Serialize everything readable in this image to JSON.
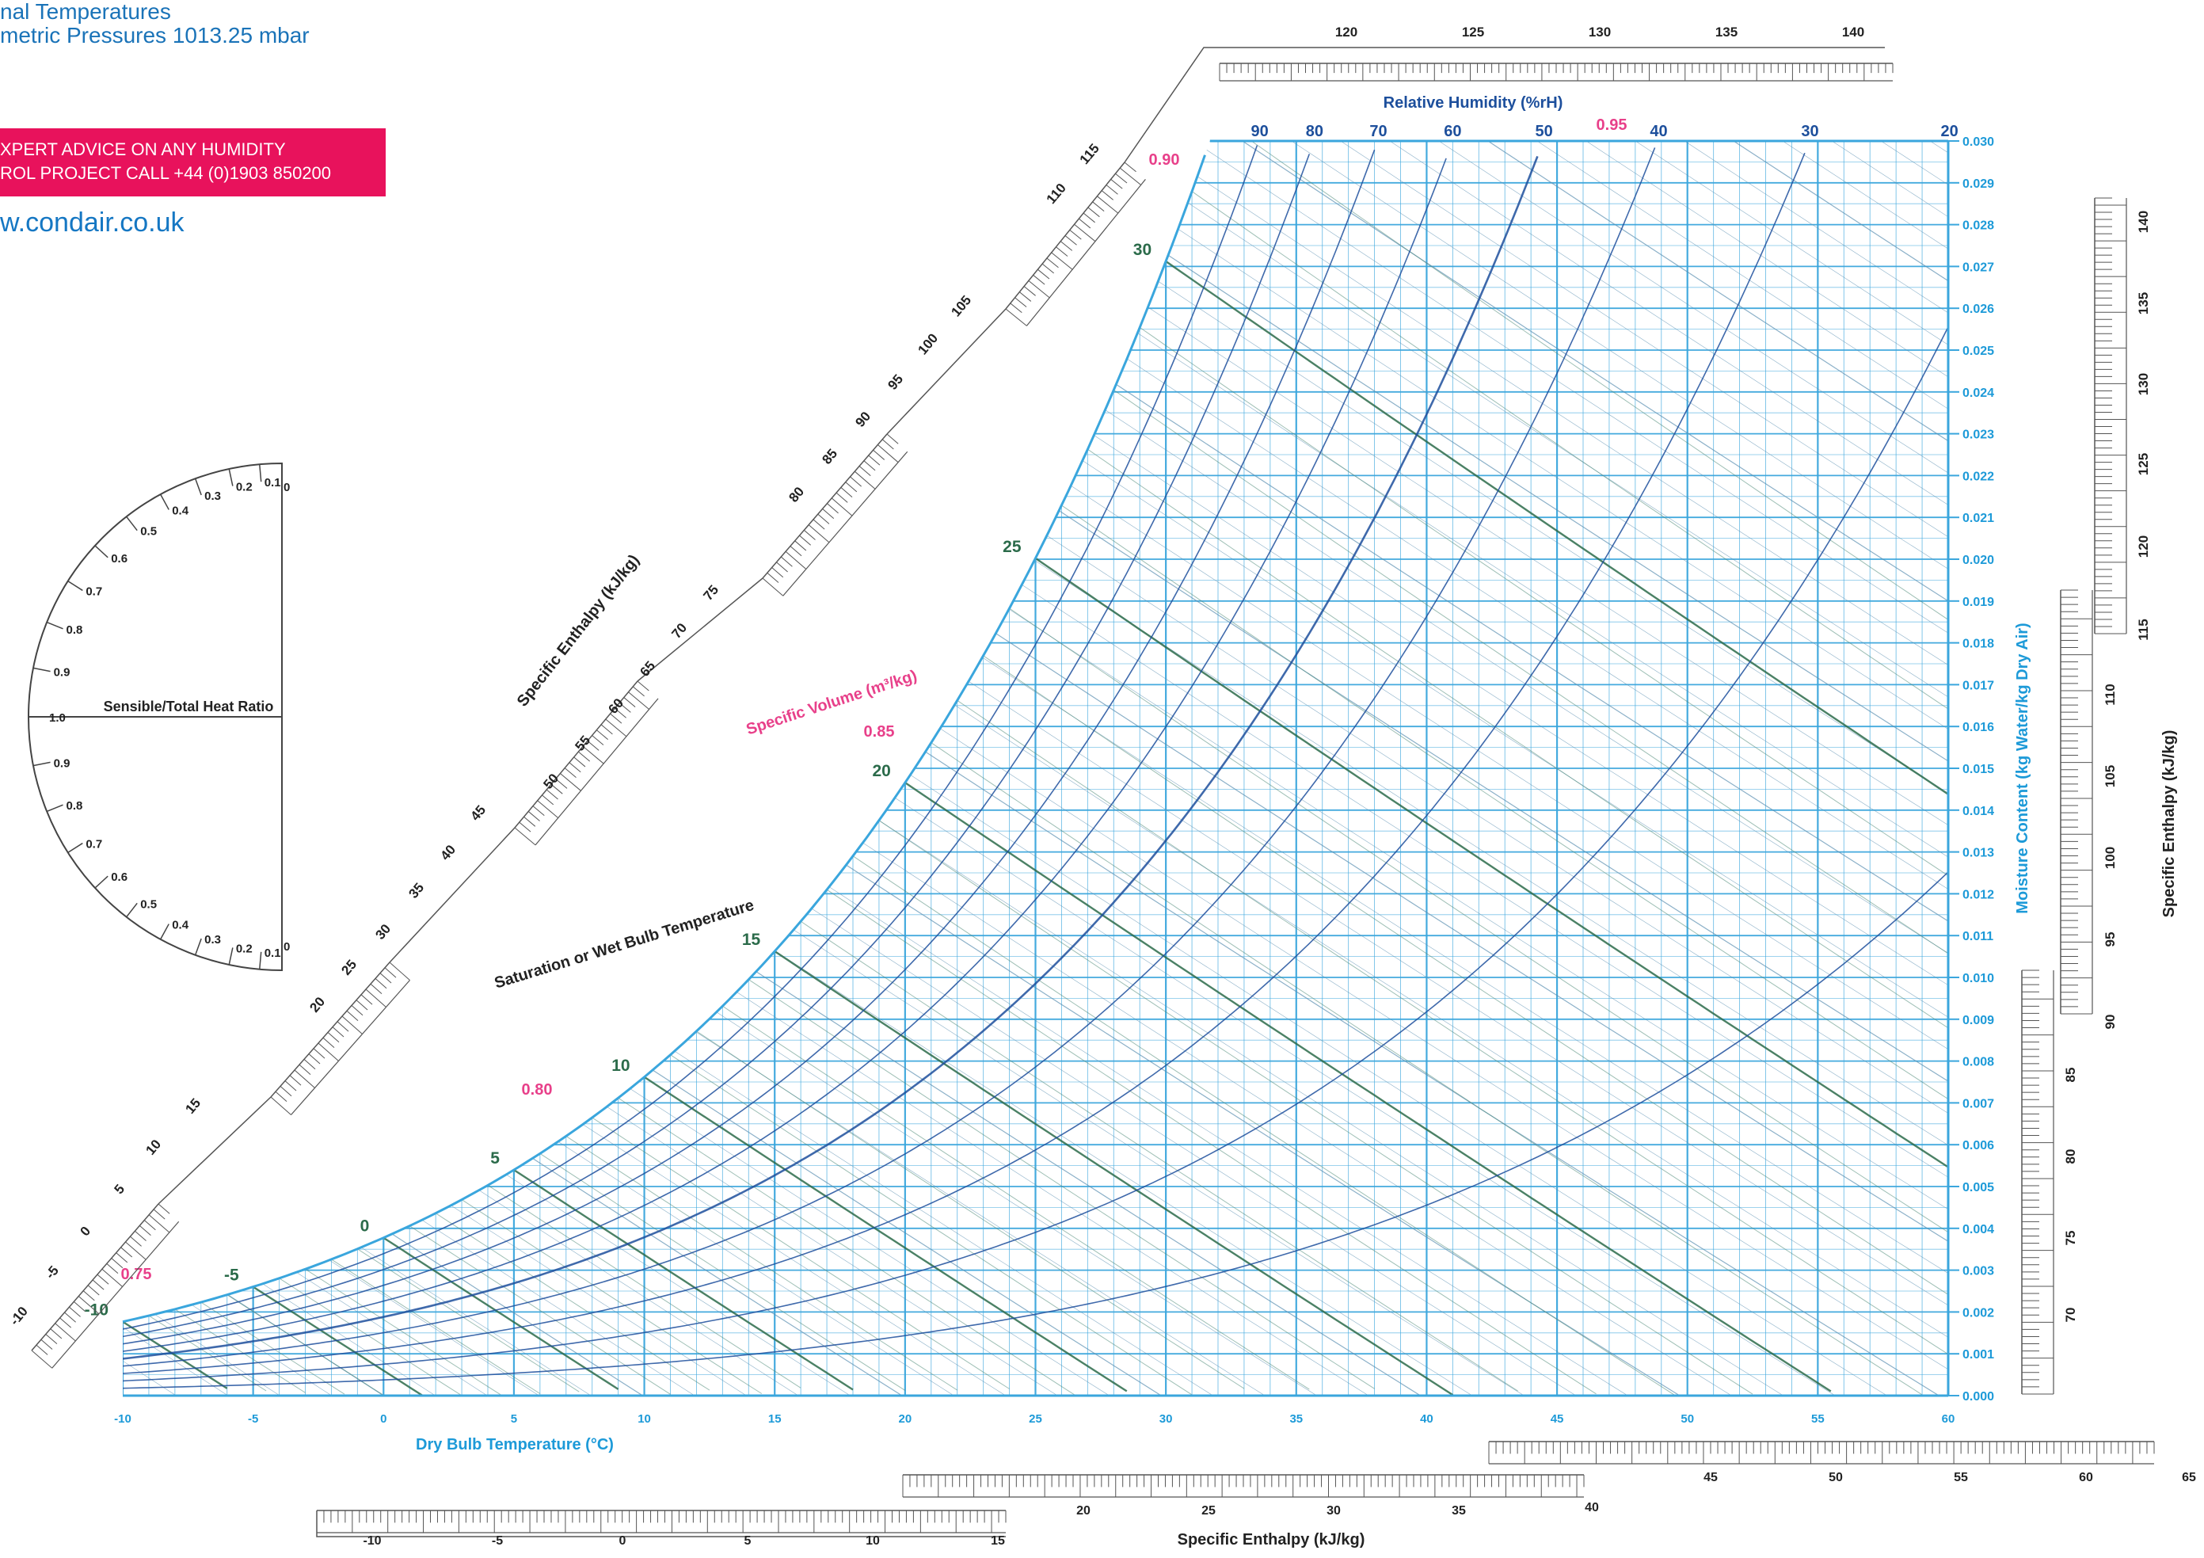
{
  "header": {
    "line1": "nal Temperatures",
    "line2": "metric Pressures 1013.25 mbar"
  },
  "banner": {
    "line1": "XPERT ADVICE ON ANY HUMIDITY",
    "line2": "ROL PROJECT CALL +44 (0)1903 850200"
  },
  "website": "w.condair.co.uk",
  "colors": {
    "grid": "#3aa6dd",
    "volume": "#e8408a",
    "wetbulb": "#2b6b4a",
    "rh": "#1d4f9c",
    "banner": "#e8125c"
  },
  "chart_data": {
    "type": "psychrometric",
    "xlabel": "Dry Bulb Temperature (°C)",
    "ylabel": "Moisture Content (kg Water/kg Dry Air)",
    "xlim": [
      -10,
      60
    ],
    "ylim": [
      0,
      0.03
    ],
    "x_ticks": [
      -10,
      -5,
      0,
      5,
      10,
      15,
      20,
      25,
      30,
      35,
      40,
      45,
      50,
      55,
      60
    ],
    "y_ticks": [
      "0.000",
      "0.001",
      "0.002",
      "0.003",
      "0.004",
      "0.005",
      "0.006",
      "0.007",
      "0.008",
      "0.009",
      "0.010",
      "0.011",
      "0.012",
      "0.013",
      "0.014",
      "0.015",
      "0.016",
      "0.017",
      "0.018",
      "0.019",
      "0.020",
      "0.021",
      "0.022",
      "0.023",
      "0.024",
      "0.025",
      "0.026",
      "0.027",
      "0.028",
      "0.029",
      "0.030"
    ],
    "rh_label": "Relative Humidity (%rH)",
    "rh_curves": [
      90,
      80,
      70,
      60,
      50,
      40,
      30,
      20
    ],
    "wetbulb_label": "Saturation or Wet Bulb Temperature",
    "wetbulb_values": [
      -10,
      -5,
      0,
      5,
      10,
      15,
      20,
      25,
      30
    ],
    "volume_label": "Specific Volume (m³/kg)",
    "volume_values": [
      "0.75",
      "0.80",
      "0.85",
      "0.90",
      "0.95"
    ],
    "enthalpy_label": "Specific Enthalpy (kJ/kg)",
    "enthalpy_diag_ticks": [
      -10,
      -5,
      0,
      5,
      10,
      15,
      20,
      25,
      30,
      35,
      40,
      45,
      50,
      55,
      60,
      65,
      70,
      75,
      80,
      85,
      90,
      95,
      100,
      105,
      110,
      115
    ],
    "enthalpy_top_ticks": [
      120,
      125,
      130,
      135,
      140
    ],
    "enthalpy_right_ticks": [
      70,
      75,
      80,
      85,
      90,
      95,
      100,
      105,
      110,
      115,
      120,
      125,
      130,
      135,
      140
    ],
    "enthalpy_bottom_ticks": [
      -10,
      -5,
      0,
      5,
      10,
      15,
      20,
      25,
      30,
      35,
      40,
      45,
      50,
      55,
      60,
      65
    ],
    "shr_label": "Sensible/Total Heat Ratio",
    "shr_values": [
      "0.1",
      "0.2",
      "0.3",
      "0.4",
      "0.5",
      "0.6",
      "0.7",
      "0.8",
      "0.9",
      "1.0",
      "0.9",
      "0.8",
      "0.7",
      "0.6",
      "0.5",
      "0.4",
      "0.3",
      "0.2",
      "0.1",
      "0",
      "0"
    ]
  }
}
